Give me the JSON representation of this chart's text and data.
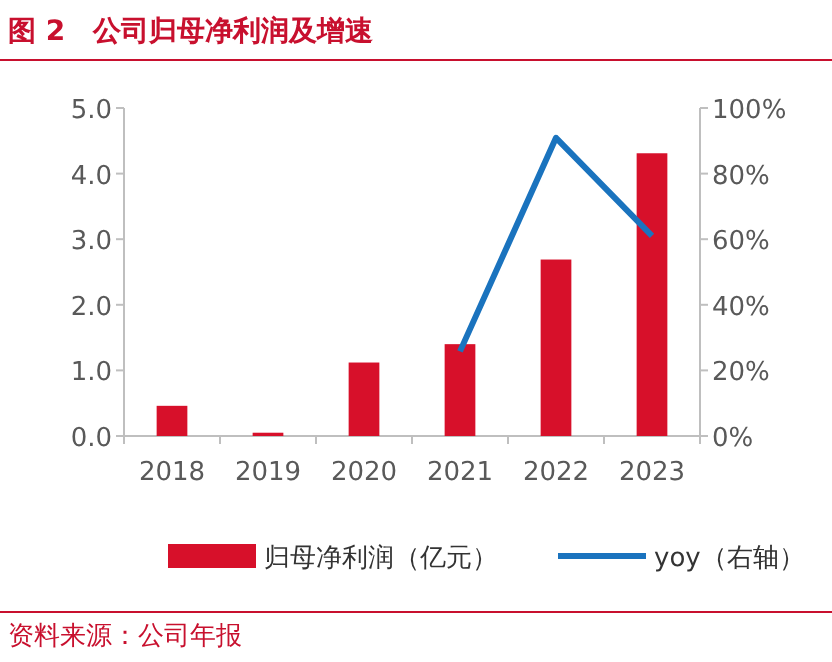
{
  "chart_data": {
    "type": "bar",
    "title": "图 2　公司归母净利润及增速",
    "categories": [
      "2018",
      "2019",
      "2020",
      "2021",
      "2022",
      "2023"
    ],
    "series": [
      {
        "name": "归母净利润（亿元）",
        "color": "#d7102a",
        "values": [
          0.46,
          0.05,
          1.12,
          1.4,
          2.69,
          4.31
        ]
      },
      {
        "name": "yoy（右轴）",
        "type": "line",
        "axis": "y2",
        "color": "#1a73be",
        "values": [
          null,
          null,
          null,
          25.8,
          90.9,
          61
        ]
      }
    ],
    "ylim": [
      0,
      5
    ],
    "yticks": [
      {
        "value": 0,
        "label": "0.0"
      },
      {
        "value": 1,
        "label": "1.0"
      },
      {
        "value": 2,
        "label": "2.0"
      },
      {
        "value": 3,
        "label": "3.0"
      },
      {
        "value": 4,
        "label": "4.0"
      },
      {
        "value": 5,
        "label": "5.0"
      }
    ],
    "y2lim": [
      0,
      100
    ],
    "y2ticks": [
      {
        "value": 0,
        "label": "0%"
      },
      {
        "value": 20,
        "label": "20%"
      },
      {
        "value": 40,
        "label": "40%"
      },
      {
        "value": 60,
        "label": "60%"
      },
      {
        "value": 80,
        "label": "80%"
      },
      {
        "value": 100,
        "label": "100%"
      }
    ],
    "legend": "bottom",
    "annotations": [
      "资料来源：公司年报"
    ]
  }
}
